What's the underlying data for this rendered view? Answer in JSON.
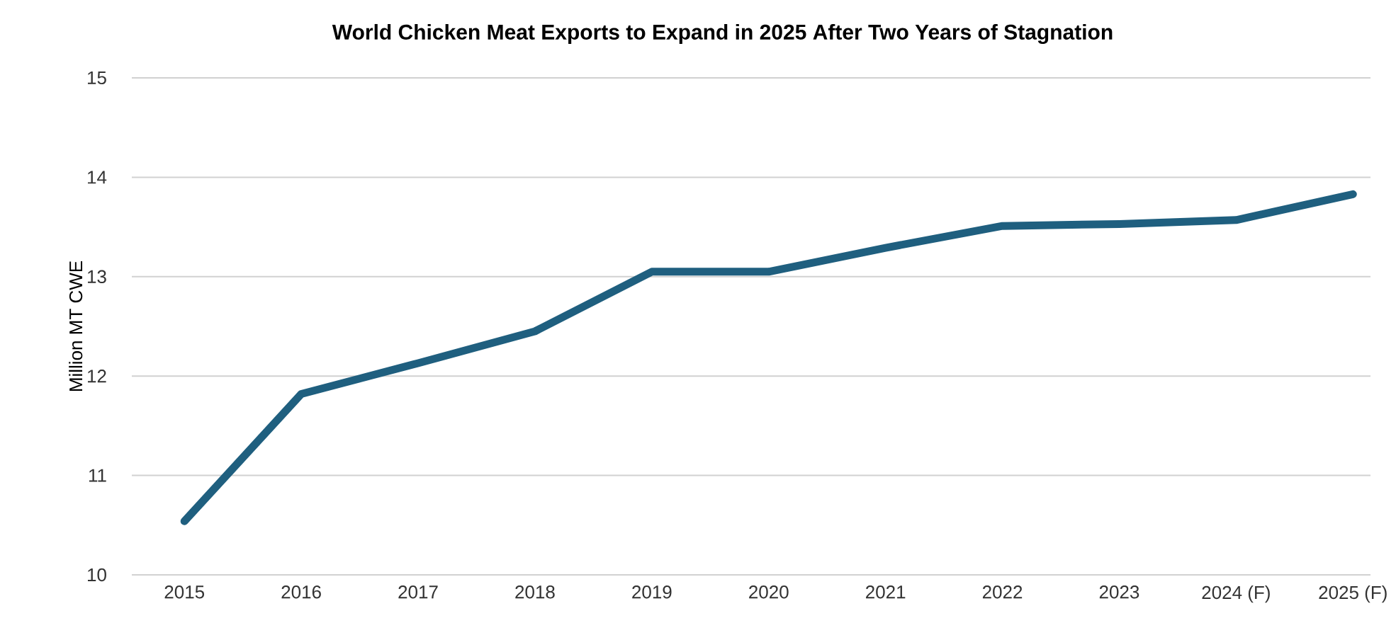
{
  "chart_data": {
    "type": "line",
    "title": "World Chicken Meat Exports to Expand in 2025 After Two Years of Stagnation",
    "ylabel": "Million MT CWE",
    "categories": [
      "2015",
      "2016",
      "2017",
      "2018",
      "2019",
      "2020",
      "2021",
      "2022",
      "2023",
      "2024 (F)",
      "2025 (F)"
    ],
    "series": [
      {
        "color": "#1f5f7f",
        "values": [
          10.54,
          11.82,
          12.13,
          12.45,
          13.05,
          13.05,
          13.29,
          13.51,
          13.53,
          13.57,
          13.83
        ]
      }
    ],
    "ylim": [
      10,
      15
    ],
    "yticks": [
      10,
      11,
      12,
      13,
      14,
      15
    ],
    "grid": "y",
    "marker": "none",
    "line_style": "solid"
  }
}
